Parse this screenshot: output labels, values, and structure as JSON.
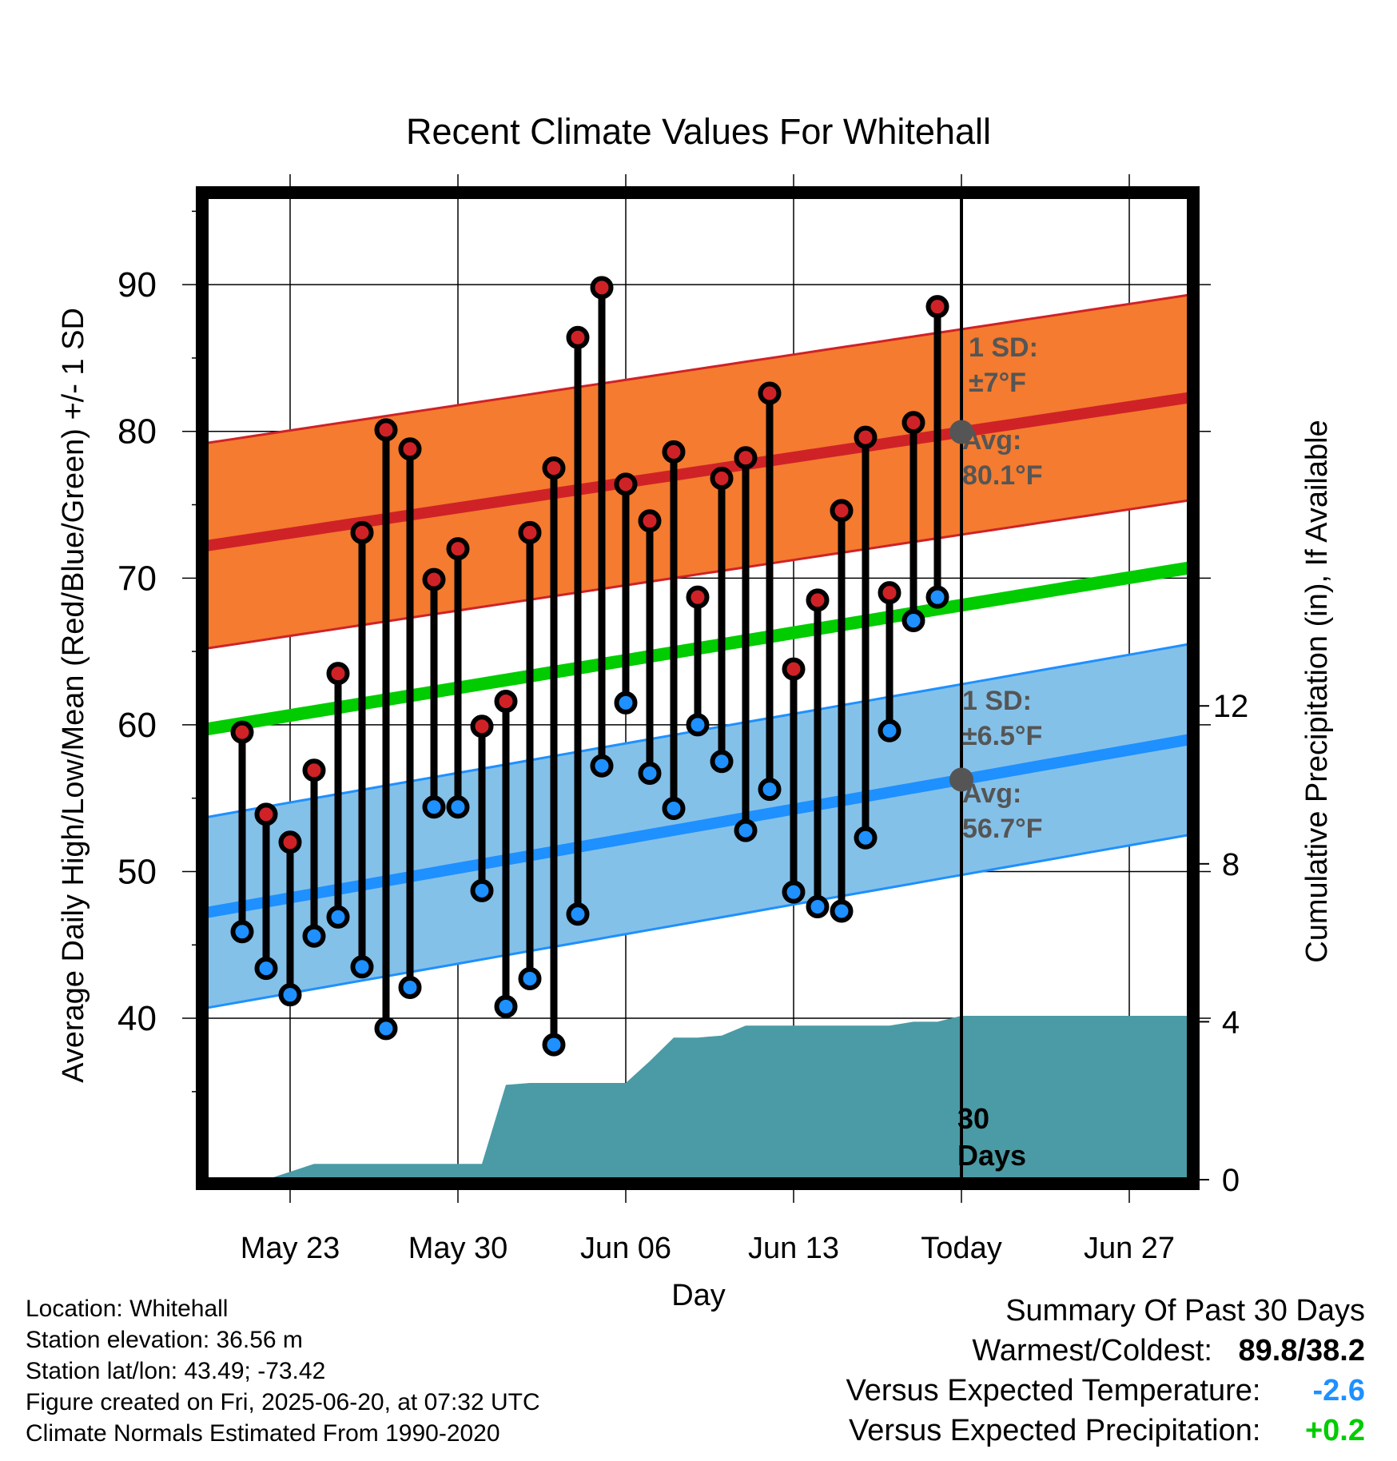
{
  "chart_data": {
    "type": "line",
    "title": "Recent Climate Values For Whitehall",
    "xlabel": "Day",
    "ylabel": "Average Daily High/Low/Mean (Red/Blue/Green) +/- 1 SD",
    "ylabel_right": "Cumulative Precipitation (in), If Available",
    "x_ticks": [
      "May 23",
      "May 30",
      "Jun 06",
      "Jun 13",
      "Today",
      "Jun 27"
    ],
    "y_ticks": [
      "40",
      "50",
      "60",
      "70",
      "80",
      "90"
    ],
    "y_ticks_right": [
      "0",
      "4",
      "8",
      "12"
    ],
    "ylim": [
      29,
      96
    ],
    "ylim_right": [
      0,
      24.9
    ],
    "x_range_days_relative_to_today": [
      -31.5,
      9.5
    ],
    "x_tick_days": [
      -28,
      -21,
      -14,
      -7,
      0,
      7
    ],
    "grid": true,
    "colors": {
      "high": "#cf2227",
      "low": "#1e90ff",
      "mean": "#00cc00",
      "high_band": "#f47b2f",
      "low_band": "#84c1e9",
      "precip": "#4a9ba5"
    },
    "days_relative_to_today": [
      -30,
      -29,
      -28,
      -27,
      -26,
      -25,
      -24,
      -23,
      -22,
      -21,
      -20,
      -19,
      -18,
      -17,
      -16,
      -15,
      -14,
      -13,
      -12,
      -11,
      -10,
      -9,
      -8,
      -7,
      -6,
      -5,
      -4,
      -3,
      -2,
      -1
    ],
    "series": [
      {
        "name": "High",
        "values": [
          59.5,
          53.9,
          52.0,
          56.9,
          63.5,
          73.1,
          80.1,
          78.8,
          69.9,
          72.0,
          59.9,
          61.6,
          73.1,
          77.5,
          86.4,
          89.8,
          76.4,
          73.9,
          78.6,
          68.7,
          76.8,
          78.2,
          82.6,
          63.8,
          68.5,
          74.6,
          79.6,
          69.0,
          80.6,
          88.5
        ]
      },
      {
        "name": "Low",
        "values": [
          45.9,
          43.4,
          41.6,
          45.6,
          46.9,
          43.5,
          39.3,
          42.1,
          54.4,
          54.4,
          48.7,
          40.8,
          42.7,
          38.2,
          47.1,
          57.2,
          61.5,
          56.7,
          54.3,
          60.0,
          57.5,
          52.8,
          55.6,
          48.6,
          47.6,
          47.3,
          52.3,
          59.6,
          67.1,
          68.7
        ]
      }
    ],
    "normal_high": {
      "start": 72.2,
      "end": 82.3,
      "sd": 7.0
    },
    "normal_low": {
      "start": 47.2,
      "end": 59.0,
      "sd": 6.5
    },
    "normal_mean": {
      "start": 59.7,
      "end": 70.7
    },
    "precip_cumulative": {
      "x": [
        -29,
        -28,
        -27,
        -26,
        -25,
        -24,
        -23,
        -22,
        -21,
        -20,
        -19,
        -18,
        -17,
        -16,
        -15,
        -14,
        -13,
        -12,
        -11,
        -10,
        -9,
        -8,
        -7,
        -6,
        -5,
        -4,
        -3,
        -2,
        -1,
        0,
        9.5
      ],
      "values": [
        0.0,
        0.2,
        0.4,
        0.4,
        0.4,
        0.4,
        0.4,
        0.4,
        0.4,
        0.4,
        2.4,
        2.45,
        2.45,
        2.45,
        2.45,
        2.45,
        3.0,
        3.6,
        3.6,
        3.65,
        3.9,
        3.9,
        3.9,
        3.9,
        3.9,
        3.9,
        3.9,
        4.0,
        4.0,
        4.15,
        4.15
      ]
    },
    "annotations": {
      "high_sd": "1 SD:",
      "high_sd_value": "±7°F",
      "high_avg": "Avg:",
      "high_avg_value": "80.1°F",
      "low_sd": "1 SD:",
      "low_sd_value": "±6.5°F",
      "low_avg": "Avg:",
      "low_avg_value": "56.7°F",
      "period_number": "30",
      "period_unit": "Days"
    }
  },
  "info": {
    "location": "Location: Whitehall",
    "elevation": "Station elevation: 36.56 m",
    "latlon": "Station lat/lon: 43.49; -73.42",
    "created": "Figure created on Fri, 2025-06-20, at 07:32 UTC",
    "normals": "Climate Normals Estimated From 1990-2020"
  },
  "summary": {
    "title": "Summary Of Past 30 Days",
    "warm_cold_label": "Warmest/Coldest:",
    "warm_cold_value": "89.8/38.2",
    "temp_label": "Versus Expected Temperature:",
    "temp_value": "-2.6",
    "temp_color": "#1e90ff",
    "precip_label": "Versus Expected Precipitation:",
    "precip_value": "+0.2",
    "precip_color": "#00cc00"
  }
}
